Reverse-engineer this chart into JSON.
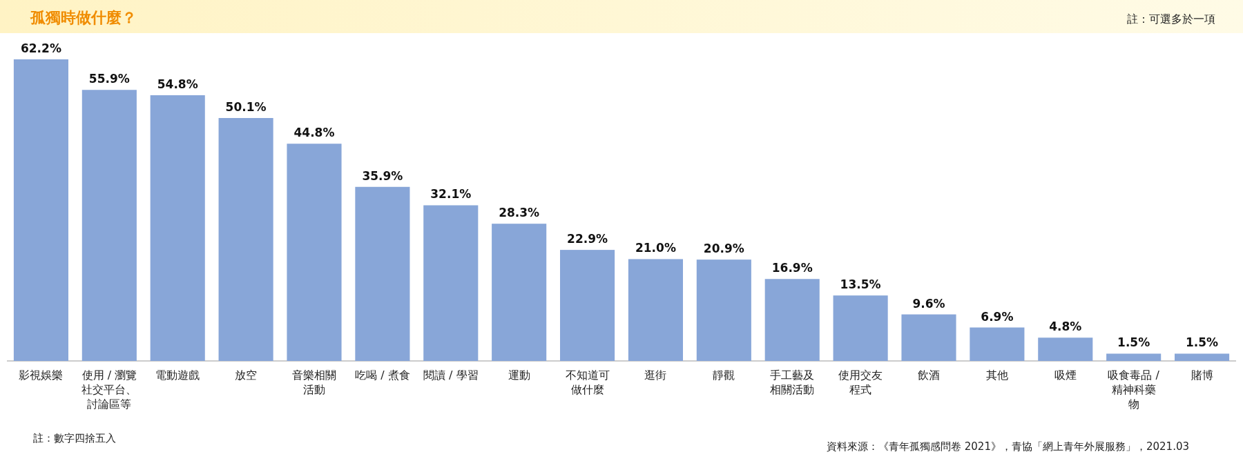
{
  "chart_data": {
    "type": "bar",
    "title": "孤獨時做什麼？",
    "subtitle": "註：可選多於一項",
    "categories": [
      "影視娛樂",
      "使用 / 瀏覽社交平台、討論區等",
      "電動遊戲",
      "放空",
      "音樂相關活動",
      "吃喝 / 煮食",
      "閱讀 / 學習",
      "運動",
      "不知道可做什麼",
      "逛街",
      "靜觀",
      "手工藝及相關活動",
      "使用交友程式",
      "飲酒",
      "其他",
      "吸煙",
      "吸食毒品 / 精神科藥物",
      "賭博"
    ],
    "values": [
      62.2,
      55.9,
      54.8,
      50.1,
      44.8,
      35.9,
      32.1,
      28.3,
      22.9,
      21.0,
      20.9,
      16.9,
      13.5,
      9.6,
      6.9,
      4.8,
      1.5,
      1.5
    ],
    "value_labels": [
      "62.2%",
      "55.9%",
      "54.8%",
      "50.1%",
      "44.8%",
      "35.9%",
      "32.1%",
      "28.3%",
      "22.9%",
      "21.0%",
      "20.9%",
      "16.9%",
      "13.5%",
      "9.6%",
      "6.9%",
      "4.8%",
      "1.5%",
      "1.5%"
    ],
    "color": "#88a6d8",
    "annotations": [
      "註：數字四捨五入",
      "資料來源：《青年孤獨感問卷 2021》，青協「網上青年外展服務」，2021.03"
    ]
  }
}
